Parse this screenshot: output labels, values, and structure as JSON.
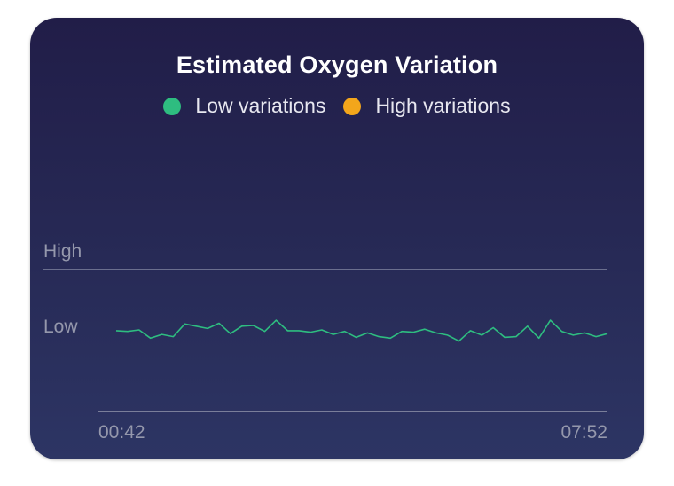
{
  "chart_data": {
    "type": "line",
    "title": "Estimated Oxygen Variation",
    "legend": [
      {
        "name": "Low variations",
        "color": "#2ebd80"
      },
      {
        "name": "High variations",
        "color": "#f3a61b"
      }
    ],
    "y_levels": [
      "High",
      "Low"
    ],
    "x_tick_labels": [
      "00:42",
      "07:52"
    ],
    "x_range_minutes": [
      42,
      472
    ],
    "y_range": [
      0,
      1
    ],
    "grid": "one horizontal line at High level, baseline axis",
    "series": [
      {
        "color": "#2ebd80",
        "x_minutes": [
          42,
          52,
          62,
          72,
          82,
          92,
          102,
          112,
          122,
          132,
          142,
          152,
          162,
          172,
          182,
          192,
          202,
          212,
          222,
          232,
          242,
          252,
          262,
          272,
          282,
          292,
          302,
          312,
          322,
          332,
          342,
          352,
          362,
          372,
          382,
          392,
          402,
          412,
          422,
          432,
          442,
          452,
          462,
          472
        ],
        "values": [
          0.18,
          0.17,
          0.19,
          0.08,
          0.13,
          0.1,
          0.27,
          0.24,
          0.21,
          0.28,
          0.14,
          0.24,
          0.25,
          0.17,
          0.32,
          0.18,
          0.18,
          0.16,
          0.19,
          0.13,
          0.17,
          0.09,
          0.15,
          0.1,
          0.08,
          0.17,
          0.16,
          0.2,
          0.15,
          0.12,
          0.04,
          0.18,
          0.12,
          0.22,
          0.09,
          0.1,
          0.24,
          0.08,
          0.32,
          0.17,
          0.12,
          0.15,
          0.1,
          0.14
        ]
      }
    ]
  }
}
